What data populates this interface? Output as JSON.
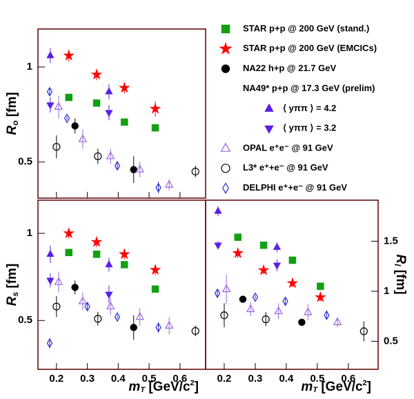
{
  "chart_data": [
    {
      "type": "scatter",
      "ylabel": {
        "symbol": "R",
        "subscript": "o",
        "unit": " [fm]"
      },
      "xlim": [
        0.14,
        0.683
      ],
      "ylim": [
        0.31,
        1.2
      ],
      "xticks": [
        0.2,
        0.3,
        0.4,
        0.5,
        0.6
      ],
      "yticks": [
        0.5,
        1
      ],
      "legend_header": "NA49* p+p @ 17.3 GeV (prelim)",
      "series": [
        {
          "name": "STAR p+p @ 200 GeV (stand.)",
          "color": "#12a012",
          "marker": "square",
          "filled": true,
          "x": [
            0.24,
            0.33,
            0.42,
            0.52
          ],
          "values": [
            0.84,
            0.81,
            0.71,
            0.68
          ]
        },
        {
          "name": "STAR p+p @ 200 GeV (EMCICs)",
          "color": "#ff0000",
          "marker": "star",
          "filled": true,
          "x": [
            0.24,
            0.33,
            0.42,
            0.52
          ],
          "values": [
            1.06,
            0.96,
            0.89,
            0.78
          ],
          "errors": [
            0.03,
            0.03,
            0.03,
            0.04
          ]
        },
        {
          "name": "NA22 h+p @ 21.7 GeV",
          "color": "#000000",
          "marker": "circle",
          "filled": true,
          "x": [
            0.26,
            0.45
          ],
          "values": [
            0.69,
            0.46
          ],
          "errors": [
            0.04,
            0.07
          ]
        },
        {
          "name": "⟨ yππ ⟩ = 4.2",
          "color": "#5a1ee6",
          "marker": "triangle-up",
          "filled": true,
          "x": [
            0.18,
            0.37
          ],
          "values": [
            1.06,
            0.87
          ],
          "errors": [
            0.04,
            0.04
          ]
        },
        {
          "name": "⟨ yππ ⟩ = 3.2",
          "color": "#5a1ee6",
          "marker": "triangle-down",
          "filled": true,
          "x": [
            0.18,
            0.37
          ],
          "values": [
            0.8,
            0.76
          ],
          "errors": [
            0.04,
            0.04
          ]
        },
        {
          "name": "OPAL e⁺e⁻ @ 91 GeV",
          "color": "#9966dd",
          "marker": "triangle-up",
          "filled": false,
          "x": [
            0.207,
            0.285,
            0.375,
            0.47,
            0.565
          ],
          "values": [
            0.79,
            0.62,
            0.53,
            0.46,
            0.38
          ],
          "errors": [
            0.06,
            0.05,
            0.04,
            0.04,
            0.03
          ]
        },
        {
          "name": "L3* e⁺+e⁻ @ 91 GeV",
          "color": "#000000",
          "marker": "circle",
          "filled": false,
          "x": [
            0.2,
            0.334,
            0.65
          ],
          "values": [
            0.58,
            0.53,
            0.45
          ],
          "errors": [
            0.06,
            0.04,
            0.03
          ]
        },
        {
          "name": "DELPHI e⁺+e⁻ @ 91 GeV",
          "color": "#2a2ad0",
          "marker": "diamond",
          "filled": false,
          "x": [
            0.178,
            0.234,
            0.397,
            0.53
          ],
          "values": [
            0.87,
            0.73,
            0.48,
            0.365
          ],
          "errors": [
            0.02,
            0.01,
            0.02,
            0.03
          ]
        }
      ]
    },
    {
      "type": "scatter",
      "ylabel": {
        "symbol": "R",
        "subscript": "s",
        "unit": " [fm]"
      },
      "xlabel": {
        "symbol": "m",
        "subscript": "T",
        "unit": " [GeV/c",
        "superscript": "2",
        "close": "]"
      },
      "xlim": [
        0.14,
        0.683
      ],
      "ylim": [
        0.22,
        1.19
      ],
      "xticks": [
        0.2,
        0.3,
        0.4,
        0.5,
        0.6
      ],
      "yticks": [
        0.5,
        1
      ],
      "series": [
        {
          "color": "#12a012",
          "marker": "square",
          "filled": true,
          "x": [
            0.24,
            0.33,
            0.42,
            0.52
          ],
          "values": [
            0.89,
            0.88,
            0.82,
            0.68
          ]
        },
        {
          "color": "#ff0000",
          "marker": "star",
          "filled": true,
          "x": [
            0.24,
            0.33,
            0.42,
            0.52
          ],
          "values": [
            1.0,
            0.95,
            0.88,
            0.79
          ],
          "errors": [
            0.03,
            0.03,
            0.03,
            0.03
          ]
        },
        {
          "color": "#000000",
          "marker": "circle",
          "filled": true,
          "x": [
            0.26,
            0.45
          ],
          "values": [
            0.69,
            0.46
          ],
          "errors": [
            0.04,
            0.07
          ]
        },
        {
          "color": "#5a1ee6",
          "marker": "triangle-up",
          "filled": true,
          "x": [
            0.18,
            0.37
          ],
          "values": [
            0.88,
            0.82
          ],
          "errors": [
            0.05,
            0.04
          ]
        },
        {
          "color": "#5a1ee6",
          "marker": "triangle-down",
          "filled": true,
          "x": [
            0.18,
            0.37
          ],
          "values": [
            0.73,
            0.65
          ],
          "errors": [
            0.04,
            0.05
          ]
        },
        {
          "color": "#9966dd",
          "marker": "triangle-up",
          "filled": false,
          "x": [
            0.207,
            0.285,
            0.375,
            0.47,
            0.565
          ],
          "values": [
            0.72,
            0.61,
            0.58,
            0.52,
            0.47
          ],
          "errors": [
            0.06,
            0.05,
            0.05,
            0.05,
            0.05
          ]
        },
        {
          "color": "#000000",
          "marker": "circle",
          "filled": false,
          "x": [
            0.2,
            0.334,
            0.65
          ],
          "values": [
            0.58,
            0.51,
            0.44
          ],
          "errors": [
            0.06,
            0.04,
            0.03
          ]
        },
        {
          "color": "#2a2ad0",
          "marker": "diamond",
          "filled": false,
          "x": [
            0.178,
            0.3,
            0.397,
            0.53
          ],
          "values": [
            0.37,
            0.58,
            0.52,
            0.46
          ],
          "errors": [
            0.03,
            0.02,
            0.01,
            0.03
          ]
        }
      ]
    },
    {
      "type": "scatter",
      "ylabel": {
        "symbol": "R",
        "subscript": "l",
        "unit": " [fm]"
      },
      "xlabel": {
        "symbol": "m",
        "subscript": "T",
        "unit": " [GeV/c",
        "superscript": "2",
        "close": "]"
      },
      "xlim": [
        0.14,
        0.696
      ],
      "ylim": [
        0.22,
        1.91
      ],
      "xticks": [
        0.2,
        0.3,
        0.4,
        0.5,
        0.6
      ],
      "yticks": [
        0.5,
        1,
        1.5
      ],
      "series": [
        {
          "color": "#12a012",
          "marker": "square",
          "filled": true,
          "x": [
            0.244,
            0.327,
            0.42,
            0.51
          ],
          "values": [
            1.54,
            1.46,
            1.31,
            1.05
          ]
        },
        {
          "color": "#ff0000",
          "marker": "star",
          "filled": true,
          "x": [
            0.244,
            0.327,
            0.42,
            0.51
          ],
          "values": [
            1.38,
            1.21,
            1.08,
            0.94
          ],
          "errors": [
            0.05,
            0.04,
            0.04,
            0.04
          ]
        },
        {
          "color": "#000000",
          "marker": "circle",
          "filled": true,
          "x": [
            0.26,
            0.45
          ],
          "values": [
            0.92,
            0.69
          ]
        },
        {
          "color": "#5a1ee6",
          "marker": "triangle-up",
          "filled": true,
          "x": [
            0.18,
            0.37
          ],
          "values": [
            1.8,
            1.44
          ],
          "errors": [
            0.05,
            0.05
          ]
        },
        {
          "color": "#5a1ee6",
          "marker": "triangle-down",
          "filled": true,
          "x": [
            0.18,
            0.37
          ],
          "values": [
            1.46,
            1.26
          ],
          "errors": [
            0.04,
            0.06
          ]
        },
        {
          "color": "#9966dd",
          "marker": "triangle-up",
          "filled": false,
          "x": [
            0.207,
            0.285,
            0.375,
            0.47,
            0.565
          ],
          "values": [
            1.02,
            0.82,
            0.8,
            0.79,
            0.69
          ],
          "errors": [
            0.15,
            0.07,
            0.08,
            0.08,
            0.05
          ]
        },
        {
          "color": "#000000",
          "marker": "circle",
          "filled": false,
          "x": [
            0.2,
            0.334,
            0.65
          ],
          "values": [
            0.76,
            0.72,
            0.6
          ],
          "errors": [
            0.12,
            0.07,
            0.1
          ]
        },
        {
          "color": "#2a2ad0",
          "marker": "diamond",
          "filled": false,
          "x": [
            0.178,
            0.3,
            0.397,
            0.53
          ],
          "values": [
            0.98,
            0.94,
            0.9,
            0.76
          ],
          "errors": [
            0.03,
            0.02,
            0.03,
            0.04
          ]
        }
      ]
    }
  ]
}
